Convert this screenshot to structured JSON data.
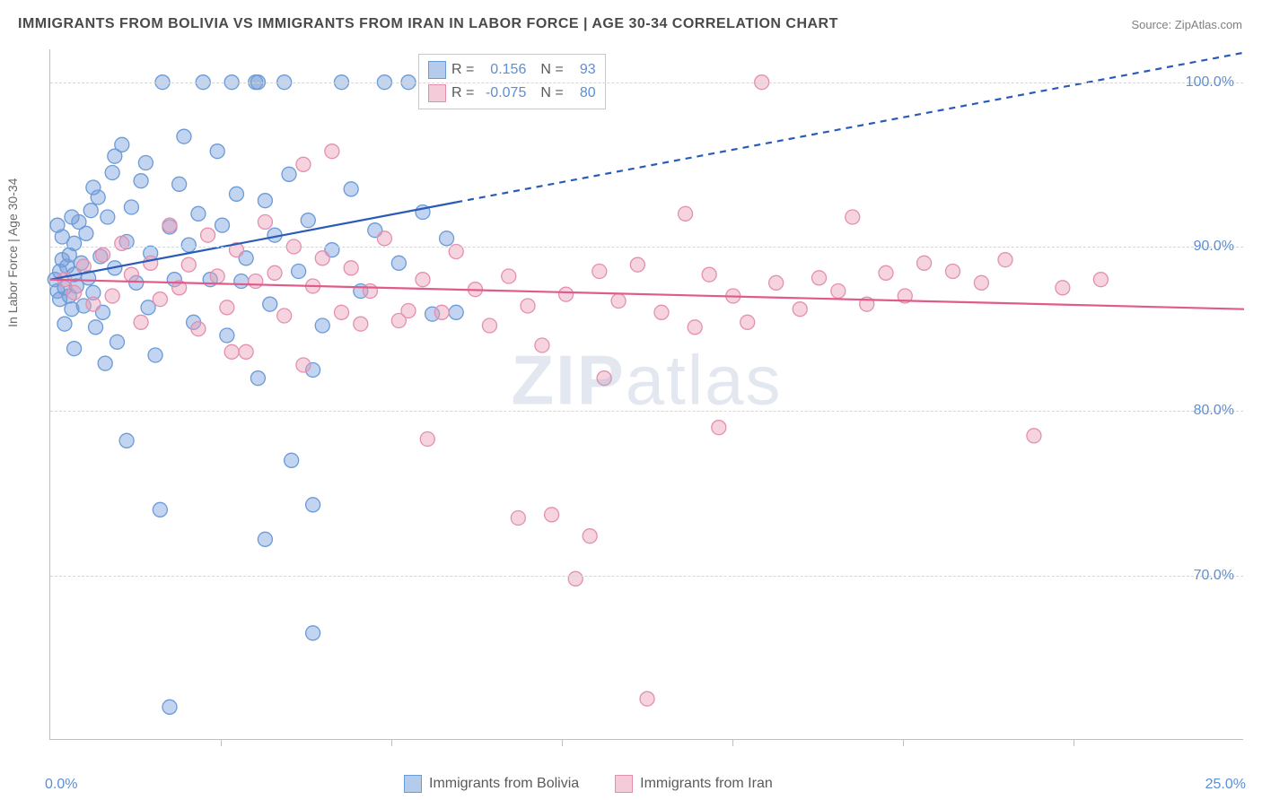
{
  "title": "IMMIGRANTS FROM BOLIVIA VS IMMIGRANTS FROM IRAN IN LABOR FORCE | AGE 30-34 CORRELATION CHART",
  "source_label": "Source: ZipAtlas.com",
  "ylabel": "In Labor Force | Age 30-34",
  "watermark_bold": "ZIP",
  "watermark_light": "atlas",
  "chart": {
    "type": "scatter",
    "x_min": 0.0,
    "x_max": 25.0,
    "y_min": 60.0,
    "y_max": 102.0,
    "x_ticks": [
      0.0,
      25.0
    ],
    "x_tick_labels": [
      "0.0%",
      "25.0%"
    ],
    "x_minor_ticks": [
      3.57,
      7.14,
      10.71,
      14.29,
      17.86,
      21.43
    ],
    "y_ticks": [
      70.0,
      80.0,
      90.0,
      100.0
    ],
    "y_tick_labels": [
      "70.0%",
      "80.0%",
      "90.0%",
      "100.0%"
    ],
    "grid_color": "#d6d6d6",
    "background_color": "#ffffff",
    "series": [
      {
        "name": "Immigrants from Bolivia",
        "marker_fill": "rgba(120,160,220,0.45)",
        "marker_stroke": "#6a9bd8",
        "marker_radius": 8,
        "line_color": "#2a5bb8",
        "line_width": 2.2,
        "reg_start": [
          0.0,
          88.0
        ],
        "reg_solid_end": [
          8.5,
          92.7
        ],
        "reg_dash_end": [
          25.0,
          101.8
        ],
        "R": "0.156",
        "N": "93",
        "points": [
          [
            0.1,
            88
          ],
          [
            0.15,
            87.3
          ],
          [
            0.2,
            88.5
          ],
          [
            0.2,
            86.8
          ],
          [
            0.25,
            89.2
          ],
          [
            0.3,
            87.5
          ],
          [
            0.3,
            85.3
          ],
          [
            0.35,
            88.8
          ],
          [
            0.4,
            89.5
          ],
          [
            0.4,
            87.0
          ],
          [
            0.45,
            86.2
          ],
          [
            0.5,
            90.2
          ],
          [
            0.5,
            88.3
          ],
          [
            0.55,
            87.6
          ],
          [
            0.6,
            91.5
          ],
          [
            0.65,
            89.0
          ],
          [
            0.7,
            86.4
          ],
          [
            0.75,
            90.8
          ],
          [
            0.8,
            88.1
          ],
          [
            0.85,
            92.2
          ],
          [
            0.9,
            87.2
          ],
          [
            0.95,
            85.1
          ],
          [
            1.0,
            93.0
          ],
          [
            1.05,
            89.4
          ],
          [
            1.1,
            86.0
          ],
          [
            1.15,
            82.9
          ],
          [
            1.2,
            91.8
          ],
          [
            1.3,
            94.5
          ],
          [
            1.35,
            88.7
          ],
          [
            1.4,
            84.2
          ],
          [
            1.5,
            96.2
          ],
          [
            1.6,
            90.3
          ],
          [
            1.7,
            92.4
          ],
          [
            1.8,
            87.8
          ],
          [
            1.9,
            94.0
          ],
          [
            2.0,
            95.1
          ],
          [
            2.05,
            86.3
          ],
          [
            2.1,
            89.6
          ],
          [
            2.2,
            83.4
          ],
          [
            2.35,
            100.0
          ],
          [
            2.5,
            91.2
          ],
          [
            2.6,
            88.0
          ],
          [
            2.7,
            93.8
          ],
          [
            2.8,
            96.7
          ],
          [
            2.9,
            90.1
          ],
          [
            3.0,
            85.4
          ],
          [
            3.1,
            92.0
          ],
          [
            3.2,
            100.0
          ],
          [
            3.35,
            88.0
          ],
          [
            3.5,
            95.8
          ],
          [
            3.6,
            91.3
          ],
          [
            3.7,
            84.6
          ],
          [
            3.8,
            100.0
          ],
          [
            3.9,
            93.2
          ],
          [
            4.0,
            87.9
          ],
          [
            4.1,
            89.3
          ],
          [
            4.3,
            100.0
          ],
          [
            4.5,
            92.8
          ],
          [
            4.6,
            86.5
          ],
          [
            4.7,
            90.7
          ],
          [
            4.9,
            100.0
          ],
          [
            5.0,
            94.4
          ],
          [
            5.05,
            77.0
          ],
          [
            5.2,
            88.5
          ],
          [
            5.4,
            91.6
          ],
          [
            5.5,
            74.3
          ],
          [
            5.7,
            85.2
          ],
          [
            5.9,
            89.8
          ],
          [
            6.1,
            100.0
          ],
          [
            6.3,
            93.5
          ],
          [
            6.5,
            87.3
          ],
          [
            6.8,
            91.0
          ],
          [
            7.0,
            100.0
          ],
          [
            7.3,
            89.0
          ],
          [
            7.5,
            100.0
          ],
          [
            7.8,
            92.1
          ],
          [
            8.0,
            85.9
          ],
          [
            8.3,
            90.5
          ],
          [
            8.5,
            86.0
          ],
          [
            2.3,
            74.0
          ],
          [
            2.5,
            62.0
          ],
          [
            1.6,
            78.2
          ],
          [
            5.5,
            66.5
          ],
          [
            4.5,
            72.2
          ],
          [
            0.5,
            83.8
          ],
          [
            4.35,
            82.0
          ],
          [
            4.35,
            100.0
          ],
          [
            5.5,
            82.5
          ],
          [
            1.35,
            95.5
          ],
          [
            0.25,
            90.6
          ],
          [
            0.15,
            91.3
          ],
          [
            0.45,
            91.8
          ],
          [
            0.9,
            93.6
          ]
        ]
      },
      {
        "name": "Immigrants from Iran",
        "marker_fill": "rgba(235,160,185,0.45)",
        "marker_stroke": "#e48fb0",
        "marker_radius": 8,
        "line_color": "#e05a8a",
        "line_width": 2.2,
        "reg_start": [
          0.0,
          88.0
        ],
        "reg_solid_end": [
          25.0,
          86.2
        ],
        "reg_dash_end": null,
        "R": "-0.075",
        "N": "80",
        "points": [
          [
            0.3,
            88
          ],
          [
            0.5,
            87.2
          ],
          [
            0.7,
            88.8
          ],
          [
            0.9,
            86.5
          ],
          [
            1.1,
            89.5
          ],
          [
            1.3,
            87.0
          ],
          [
            1.5,
            90.2
          ],
          [
            1.7,
            88.3
          ],
          [
            1.9,
            85.4
          ],
          [
            2.1,
            89.0
          ],
          [
            2.3,
            86.8
          ],
          [
            2.5,
            91.3
          ],
          [
            2.7,
            87.5
          ],
          [
            2.9,
            88.9
          ],
          [
            3.1,
            85.0
          ],
          [
            3.3,
            90.7
          ],
          [
            3.5,
            88.2
          ],
          [
            3.7,
            86.3
          ],
          [
            3.9,
            89.8
          ],
          [
            4.1,
            83.6
          ],
          [
            4.3,
            87.9
          ],
          [
            4.5,
            91.5
          ],
          [
            4.7,
            88.4
          ],
          [
            4.9,
            85.8
          ],
          [
            5.1,
            90.0
          ],
          [
            5.3,
            95.0
          ],
          [
            5.5,
            87.6
          ],
          [
            5.7,
            89.3
          ],
          [
            5.9,
            95.8
          ],
          [
            6.1,
            86.0
          ],
          [
            6.3,
            88.7
          ],
          [
            6.7,
            87.3
          ],
          [
            7.0,
            90.5
          ],
          [
            7.3,
            85.5
          ],
          [
            7.5,
            86.1
          ],
          [
            7.8,
            88.0
          ],
          [
            7.9,
            78.3
          ],
          [
            8.2,
            86.0
          ],
          [
            8.5,
            89.7
          ],
          [
            8.9,
            87.4
          ],
          [
            9.2,
            85.2
          ],
          [
            9.6,
            88.2
          ],
          [
            10.0,
            86.4
          ],
          [
            10.3,
            84.0
          ],
          [
            10.5,
            73.7
          ],
          [
            10.8,
            87.1
          ],
          [
            11.0,
            69.8
          ],
          [
            11.3,
            72.4
          ],
          [
            11.5,
            88.5
          ],
          [
            11.6,
            82.0
          ],
          [
            11.9,
            86.7
          ],
          [
            12.3,
            88.9
          ],
          [
            12.8,
            86.0
          ],
          [
            13.3,
            92.0
          ],
          [
            13.5,
            85.1
          ],
          [
            13.8,
            88.3
          ],
          [
            14.0,
            79.0
          ],
          [
            14.3,
            87.0
          ],
          [
            14.6,
            85.4
          ],
          [
            14.9,
            100.0
          ],
          [
            15.2,
            87.8
          ],
          [
            15.7,
            86.2
          ],
          [
            16.1,
            88.1
          ],
          [
            16.5,
            87.3
          ],
          [
            16.8,
            91.8
          ],
          [
            17.1,
            86.5
          ],
          [
            17.5,
            88.4
          ],
          [
            17.9,
            87.0
          ],
          [
            18.3,
            89.0
          ],
          [
            18.9,
            88.5
          ],
          [
            19.5,
            87.8
          ],
          [
            20.0,
            89.2
          ],
          [
            20.6,
            78.5
          ],
          [
            21.2,
            87.5
          ],
          [
            22.0,
            88.0
          ],
          [
            12.5,
            62.5
          ],
          [
            5.3,
            82.8
          ],
          [
            3.8,
            83.6
          ],
          [
            6.5,
            85.3
          ],
          [
            9.8,
            73.5
          ]
        ]
      }
    ]
  },
  "legend_top": {
    "rows": [
      {
        "fill": "rgba(120,160,220,0.55)",
        "stroke": "#6a9bd8",
        "R_label": "R =",
        "R": "0.156",
        "N_label": "N =",
        "N": "93"
      },
      {
        "fill": "rgba(235,160,185,0.55)",
        "stroke": "#e48fb0",
        "R_label": "R =",
        "R": "-0.075",
        "N_label": "N =",
        "N": "80"
      }
    ]
  },
  "legend_bottom": {
    "items": [
      {
        "fill": "rgba(120,160,220,0.55)",
        "stroke": "#6a9bd8",
        "label": "Immigrants from Bolivia"
      },
      {
        "fill": "rgba(235,160,185,0.55)",
        "stroke": "#e48fb0",
        "label": "Immigrants from Iran"
      }
    ]
  }
}
